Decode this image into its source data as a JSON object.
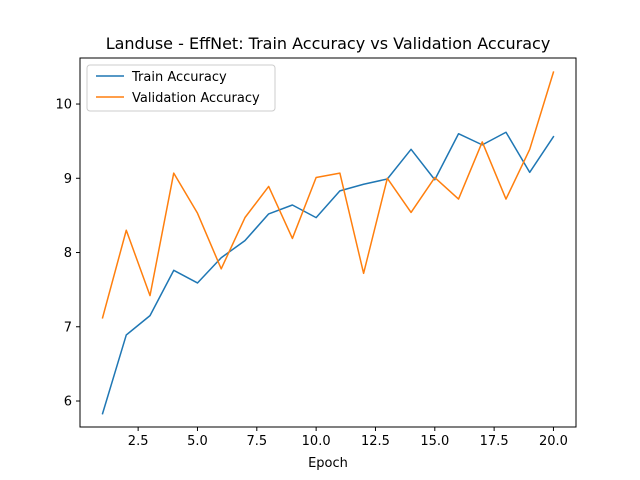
{
  "chart_data": {
    "type": "line",
    "title": "Landuse - EffNet: Train Accuracy vs Validation Accuracy",
    "xlabel": "Epoch",
    "ylabel": "",
    "xlim": [
      0.05,
      20.95
    ],
    "ylim": [
      5.65,
      10.62
    ],
    "xticks": [
      2.5,
      5.0,
      7.5,
      10.0,
      12.5,
      15.0,
      17.5,
      20.0
    ],
    "xtick_labels": [
      "2.5",
      "5.0",
      "7.5",
      "10.0",
      "12.5",
      "15.0",
      "17.5",
      "20.0"
    ],
    "yticks": [
      6,
      7,
      8,
      9,
      10
    ],
    "ytick_labels": [
      "6",
      "7",
      "8",
      "9",
      "10"
    ],
    "grid": false,
    "legend_position": "upper-left",
    "x": [
      1,
      2,
      3,
      4,
      5,
      6,
      7,
      8,
      9,
      10,
      11,
      12,
      13,
      14,
      15,
      16,
      17,
      18,
      19,
      20
    ],
    "series": [
      {
        "name": "Train Accuracy",
        "color": "#1f77b4",
        "values": [
          5.83,
          6.89,
          7.15,
          7.76,
          7.59,
          7.93,
          8.16,
          8.52,
          8.64,
          8.47,
          8.83,
          8.92,
          8.99,
          9.39,
          8.98,
          9.6,
          9.45,
          9.62,
          9.08,
          9.56
        ]
      },
      {
        "name": "Validation Accuracy",
        "color": "#ff7f0e",
        "values": [
          7.12,
          8.3,
          7.42,
          9.07,
          8.53,
          7.78,
          8.47,
          8.89,
          8.19,
          9.01,
          9.07,
          7.72,
          9.0,
          8.54,
          9.01,
          8.72,
          9.49,
          8.72,
          9.39,
          10.43
        ]
      }
    ]
  }
}
